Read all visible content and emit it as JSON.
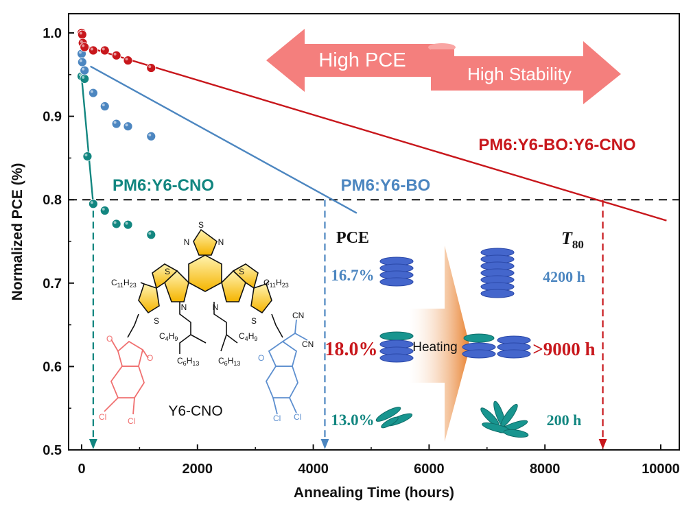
{
  "chart_data": {
    "type": "scatter",
    "xlabel": "Annealing Time (hours)",
    "ylabel": "Normalized PCE (%)",
    "xlim": [
      -150,
      10300
    ],
    "ylim": [
      0.5,
      1.02
    ],
    "x_ticks": [
      0,
      2000,
      4000,
      6000,
      8000,
      10000
    ],
    "y_ticks": [
      0.5,
      0.6,
      0.7,
      0.8,
      0.9,
      1.0
    ],
    "y_tick_labels": [
      "0.5",
      "0.6",
      "0.7",
      "0.8",
      "0.9",
      "1.0"
    ],
    "threshold_y": 0.8,
    "series": [
      {
        "name": "PM6:Y6-BO:Y6-CNO",
        "color": "#c8171c",
        "points": [
          [
            0,
            1.0
          ],
          [
            10,
            0.998
          ],
          [
            20,
            0.988
          ],
          [
            50,
            0.983
          ],
          [
            200,
            0.979
          ],
          [
            400,
            0.979
          ],
          [
            600,
            0.973
          ],
          [
            800,
            0.967
          ],
          [
            1200,
            0.958
          ]
        ],
        "fit": [
          [
            0,
            0.985
          ],
          [
            10100,
            0.775
          ]
        ],
        "t80_x": 9000
      },
      {
        "name": "PM6:Y6-BO",
        "color": "#4c86c0",
        "points": [
          [
            0,
            0.975
          ],
          [
            10,
            0.965
          ],
          [
            50,
            0.955
          ],
          [
            200,
            0.928
          ],
          [
            400,
            0.912
          ],
          [
            600,
            0.891
          ],
          [
            800,
            0.888
          ],
          [
            1200,
            0.876
          ]
        ],
        "fit": [
          [
            150,
            0.96
          ],
          [
            4750,
            0.784
          ]
        ],
        "t80_x": 4200
      },
      {
        "name": "PM6:Y6-CNO",
        "color": "#128680",
        "points": [
          [
            0,
            0.948
          ],
          [
            50,
            0.945
          ],
          [
            100,
            0.852
          ],
          [
            200,
            0.795
          ],
          [
            400,
            0.787
          ],
          [
            600,
            0.771
          ],
          [
            800,
            0.77
          ],
          [
            1200,
            0.758
          ]
        ],
        "fit": [
          [
            0,
            0.947
          ],
          [
            200,
            0.795
          ]
        ],
        "t80_x": 200
      }
    ],
    "annotations": {
      "arrow_left": "High PCE",
      "arrow_right": "High Stability",
      "molecule_name": "Y6-CNO",
      "pce_header": "PCE",
      "t80_header": "T",
      "t80_header_sub": "80",
      "heating": "Heating",
      "rows": [
        {
          "pce": "16.7%",
          "t80": "4200 h",
          "color": "#4c86c0"
        },
        {
          "pce": "18.0%",
          "t80": ">9000 h",
          "color": "#c8171c"
        },
        {
          "pce": "13.0%",
          "t80": "200 h",
          "color": "#128680"
        }
      ]
    },
    "colors": {
      "red": "#c8171c",
      "blue": "#4c86c0",
      "teal": "#128680",
      "arrow_pink": "#f47f7d",
      "heating_orange": "#e8802d",
      "disc_blue": "#4466cc",
      "disc_teal": "#18958f"
    }
  }
}
